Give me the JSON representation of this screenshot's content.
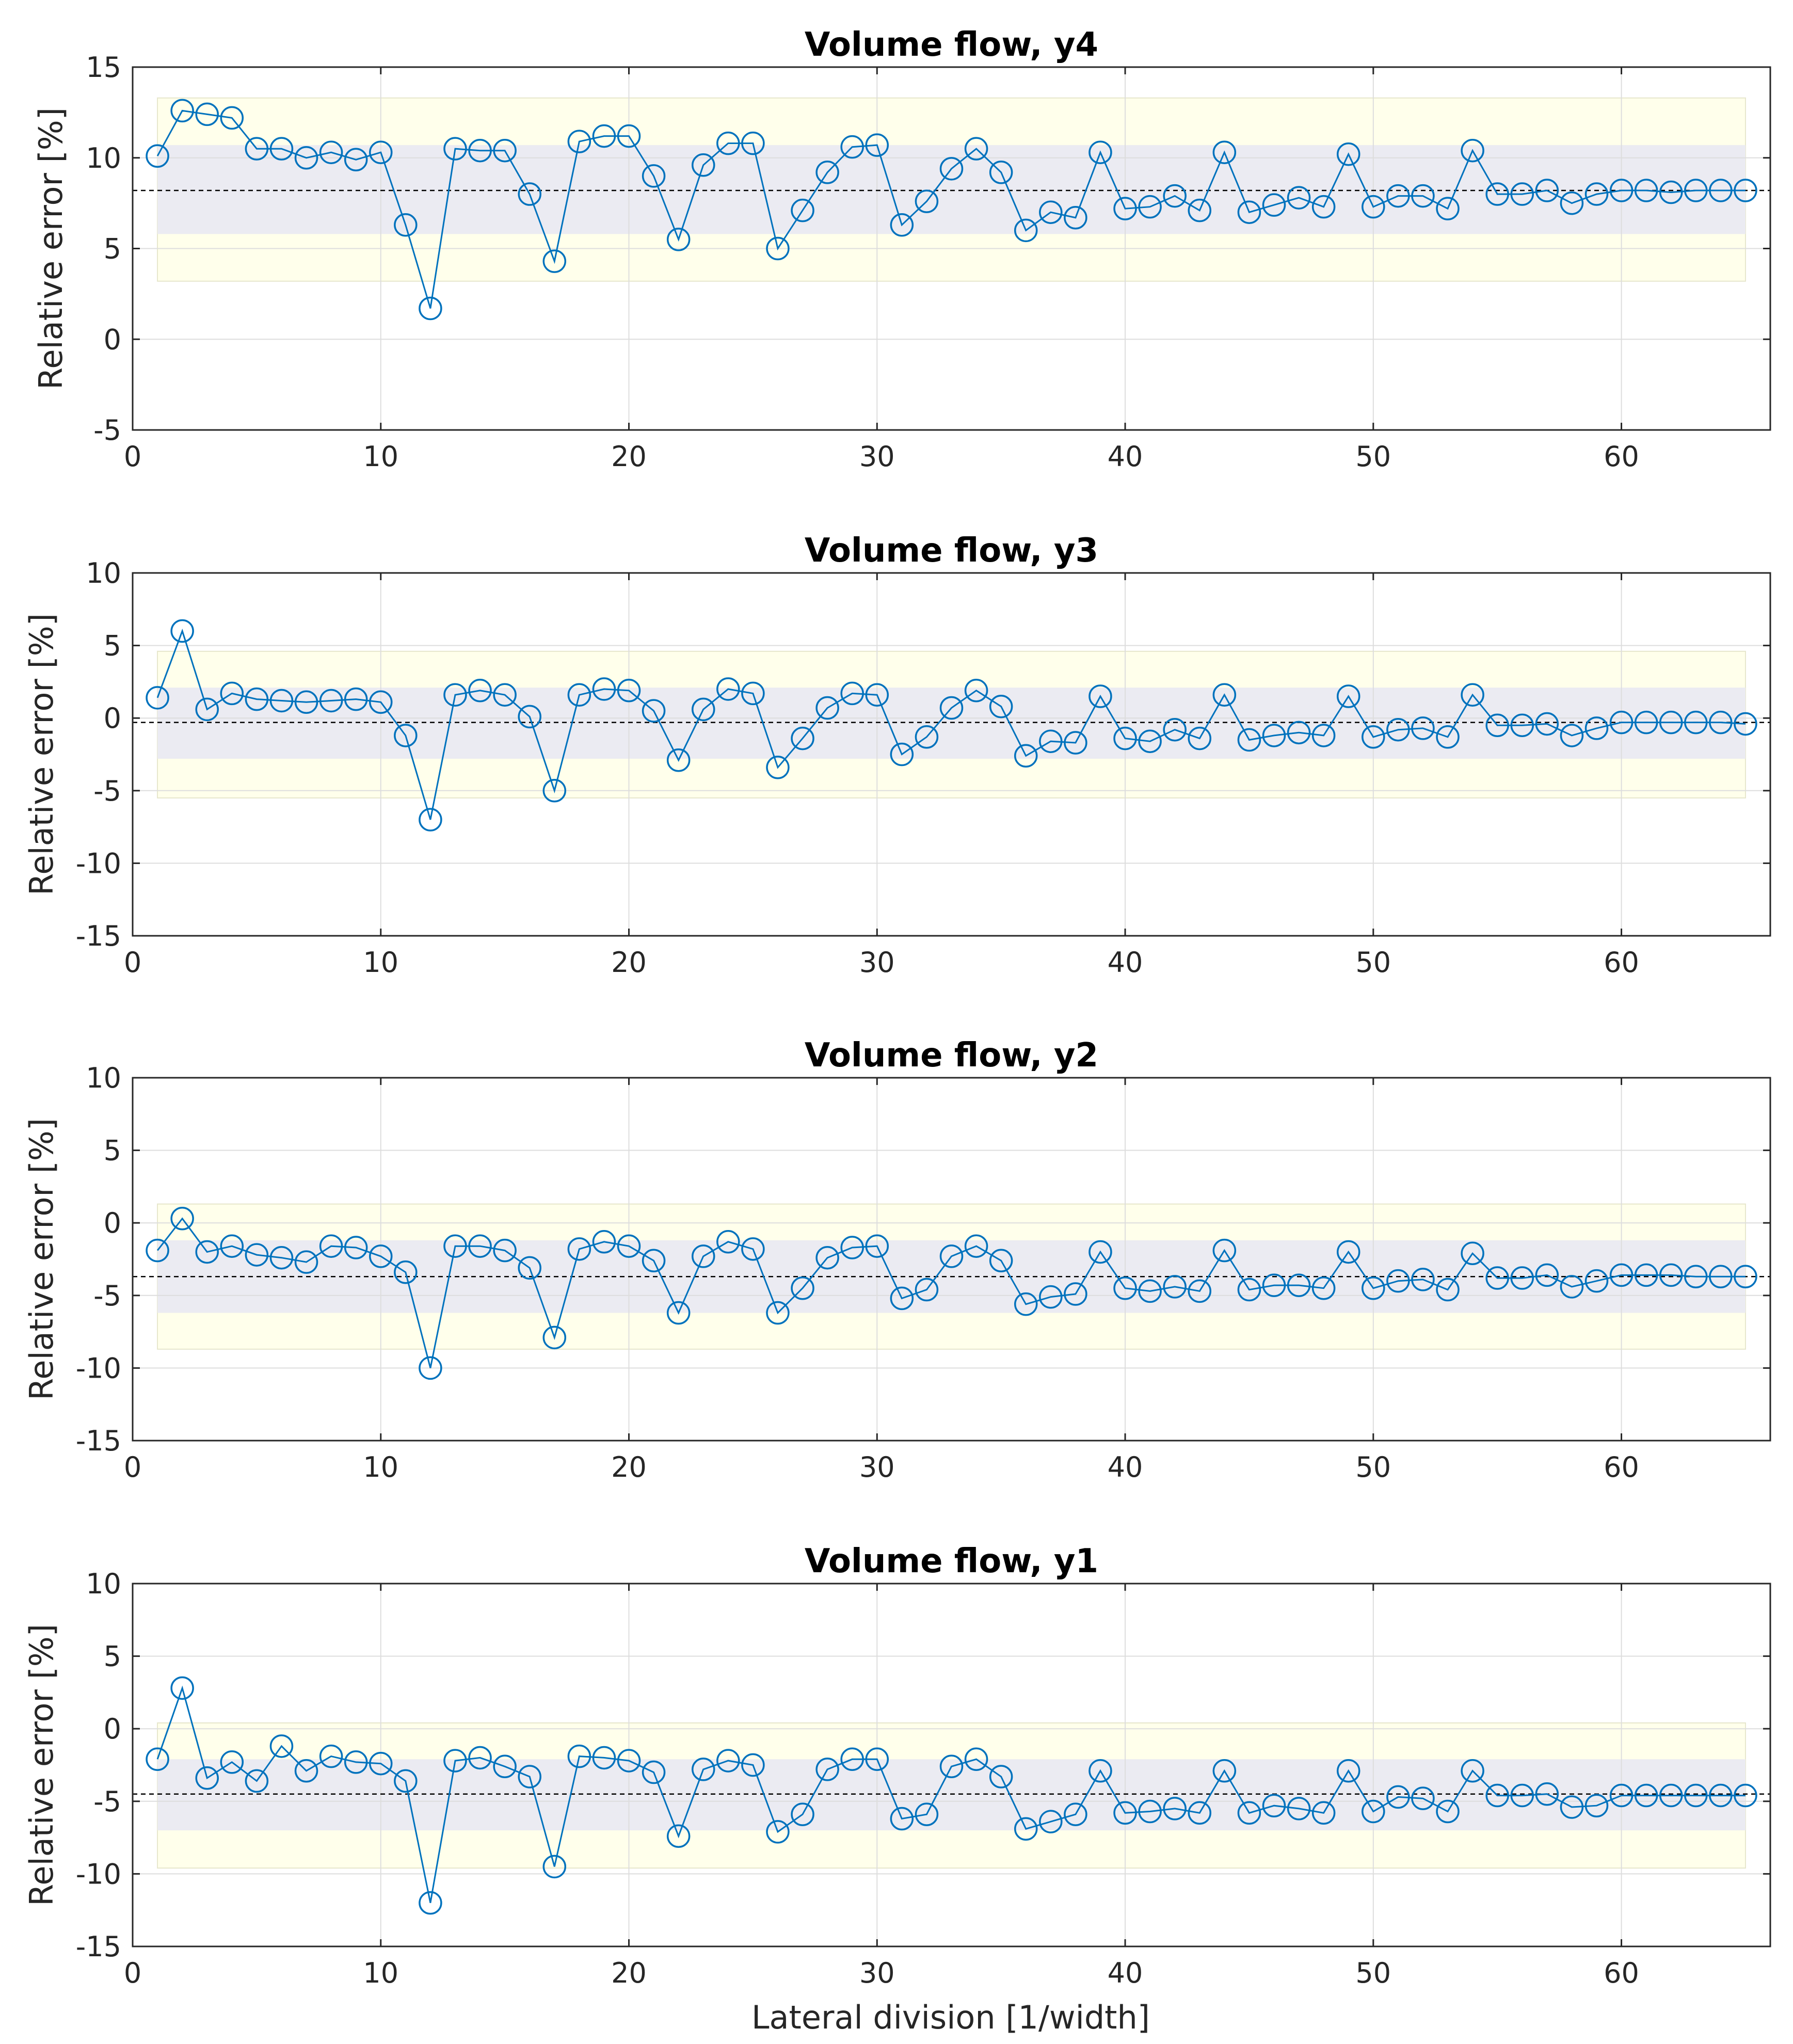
{
  "figure": {
    "xlabel": "Lateral division [1/width]",
    "colors": {
      "series": "#0072BD",
      "outer_band": "#FFFFEB",
      "inner_band": "#EBEBF2",
      "grid": "#DDDDDD",
      "axis": "#262626"
    }
  },
  "chart_data": [
    {
      "type": "line",
      "title": "Volume flow, y4",
      "xlabel": "",
      "ylabel": "Relative error [%]",
      "xlim": [
        0,
        66
      ],
      "ylim": [
        -5,
        15
      ],
      "xticks": [
        0,
        10,
        20,
        30,
        40,
        50,
        60
      ],
      "yticks": [
        -5,
        0,
        5,
        10,
        15
      ],
      "grid": true,
      "mean": 8.2,
      "inner_band": [
        5.8,
        10.7
      ],
      "outer_band": [
        3.2,
        13.3
      ],
      "x": [
        1,
        2,
        3,
        4,
        5,
        6,
        7,
        8,
        9,
        10,
        11,
        12,
        13,
        14,
        15,
        16,
        17,
        18,
        19,
        20,
        21,
        22,
        23,
        24,
        25,
        26,
        27,
        28,
        29,
        30,
        31,
        32,
        33,
        34,
        35,
        36,
        37,
        38,
        39,
        40,
        41,
        42,
        43,
        44,
        45,
        46,
        47,
        48,
        49,
        50,
        51,
        52,
        53,
        54,
        55,
        56,
        57,
        58,
        59,
        60,
        61,
        62,
        63,
        64,
        65
      ],
      "y": [
        10.1,
        12.6,
        12.4,
        12.2,
        10.5,
        10.5,
        10.0,
        10.3,
        9.9,
        10.3,
        6.3,
        1.7,
        10.5,
        10.4,
        10.4,
        8.0,
        4.3,
        10.9,
        11.2,
        11.2,
        9.0,
        5.5,
        9.6,
        10.8,
        10.8,
        5.0,
        7.1,
        9.2,
        10.6,
        10.7,
        6.3,
        7.6,
        9.4,
        10.5,
        9.2,
        6.0,
        7.0,
        6.7,
        10.3,
        7.2,
        7.3,
        7.9,
        7.1,
        10.3,
        7.0,
        7.4,
        7.8,
        7.3,
        10.2,
        7.3,
        7.9,
        7.9,
        7.2,
        10.4,
        8.0,
        8.0,
        8.2,
        7.5,
        8.0,
        8.2,
        8.2,
        8.1,
        8.2,
        8.2,
        8.2
      ]
    },
    {
      "type": "line",
      "title": "Volume flow, y3",
      "xlabel": "",
      "ylabel": "Relative error [%]",
      "xlim": [
        0,
        66
      ],
      "ylim": [
        -15,
        10
      ],
      "xticks": [
        0,
        10,
        20,
        30,
        40,
        50,
        60
      ],
      "yticks": [
        -15,
        -10,
        -5,
        0,
        5,
        10
      ],
      "grid": true,
      "mean": -0.3,
      "inner_band": [
        -2.8,
        2.1
      ],
      "outer_band": [
        -5.5,
        4.6
      ],
      "x": [
        1,
        2,
        3,
        4,
        5,
        6,
        7,
        8,
        9,
        10,
        11,
        12,
        13,
        14,
        15,
        16,
        17,
        18,
        19,
        20,
        21,
        22,
        23,
        24,
        25,
        26,
        27,
        28,
        29,
        30,
        31,
        32,
        33,
        34,
        35,
        36,
        37,
        38,
        39,
        40,
        41,
        42,
        43,
        44,
        45,
        46,
        47,
        48,
        49,
        50,
        51,
        52,
        53,
        54,
        55,
        56,
        57,
        58,
        59,
        60,
        61,
        62,
        63,
        64,
        65
      ],
      "y": [
        1.4,
        6.0,
        0.6,
        1.7,
        1.3,
        1.2,
        1.1,
        1.2,
        1.3,
        1.1,
        -1.2,
        -7.0,
        1.6,
        1.9,
        1.6,
        0.1,
        -5.0,
        1.6,
        2.0,
        1.9,
        0.5,
        -2.9,
        0.6,
        2.0,
        1.7,
        -3.4,
        -1.4,
        0.7,
        1.7,
        1.6,
        -2.5,
        -1.3,
        0.7,
        1.9,
        0.8,
        -2.6,
        -1.6,
        -1.7,
        1.5,
        -1.4,
        -1.6,
        -0.8,
        -1.4,
        1.6,
        -1.5,
        -1.2,
        -1.0,
        -1.2,
        1.5,
        -1.3,
        -0.8,
        -0.7,
        -1.3,
        1.6,
        -0.5,
        -0.5,
        -0.4,
        -1.2,
        -0.7,
        -0.3,
        -0.3,
        -0.3,
        -0.3,
        -0.3,
        -0.4
      ]
    },
    {
      "type": "line",
      "title": "Volume flow, y2",
      "xlabel": "",
      "ylabel": "Relative error [%]",
      "xlim": [
        0,
        66
      ],
      "ylim": [
        -15,
        10
      ],
      "xticks": [
        0,
        10,
        20,
        30,
        40,
        50,
        60
      ],
      "yticks": [
        -15,
        -10,
        -5,
        0,
        5,
        10
      ],
      "grid": true,
      "mean": -3.7,
      "inner_band": [
        -6.2,
        -1.2
      ],
      "outer_band": [
        -8.7,
        1.3
      ],
      "x": [
        1,
        2,
        3,
        4,
        5,
        6,
        7,
        8,
        9,
        10,
        11,
        12,
        13,
        14,
        15,
        16,
        17,
        18,
        19,
        20,
        21,
        22,
        23,
        24,
        25,
        26,
        27,
        28,
        29,
        30,
        31,
        32,
        33,
        34,
        35,
        36,
        37,
        38,
        39,
        40,
        41,
        42,
        43,
        44,
        45,
        46,
        47,
        48,
        49,
        50,
        51,
        52,
        53,
        54,
        55,
        56,
        57,
        58,
        59,
        60,
        61,
        62,
        63,
        64,
        65
      ],
      "y": [
        -1.9,
        0.3,
        -2.0,
        -1.6,
        -2.2,
        -2.4,
        -2.7,
        -1.6,
        -1.7,
        -2.3,
        -3.4,
        -10.0,
        -1.6,
        -1.6,
        -1.9,
        -3.1,
        -7.9,
        -1.8,
        -1.3,
        -1.6,
        -2.6,
        -6.2,
        -2.3,
        -1.3,
        -1.8,
        -6.2,
        -4.5,
        -2.4,
        -1.7,
        -1.6,
        -5.2,
        -4.6,
        -2.3,
        -1.6,
        -2.6,
        -5.6,
        -5.1,
        -4.9,
        -2.0,
        -4.5,
        -4.7,
        -4.4,
        -4.7,
        -1.9,
        -4.6,
        -4.3,
        -4.3,
        -4.5,
        -2.0,
        -4.5,
        -4.0,
        -3.9,
        -4.6,
        -2.1,
        -3.8,
        -3.8,
        -3.6,
        -4.4,
        -4.0,
        -3.6,
        -3.6,
        -3.6,
        -3.7,
        -3.7,
        -3.7
      ]
    },
    {
      "type": "line",
      "title": "Volume flow, y1",
      "xlabel": "Lateral division [1/width]",
      "ylabel": "Relative error [%]",
      "xlim": [
        0,
        66
      ],
      "ylim": [
        -15,
        10
      ],
      "xticks": [
        0,
        10,
        20,
        30,
        40,
        50,
        60
      ],
      "yticks": [
        -15,
        -10,
        -5,
        0,
        5,
        10
      ],
      "grid": true,
      "mean": -4.5,
      "inner_band": [
        -7.0,
        -2.1
      ],
      "outer_band": [
        -9.6,
        0.4
      ],
      "x": [
        1,
        2,
        3,
        4,
        5,
        6,
        7,
        8,
        9,
        10,
        11,
        12,
        13,
        14,
        15,
        16,
        17,
        18,
        19,
        20,
        21,
        22,
        23,
        24,
        25,
        26,
        27,
        28,
        29,
        30,
        31,
        32,
        33,
        34,
        35,
        36,
        37,
        38,
        39,
        40,
        41,
        42,
        43,
        44,
        45,
        46,
        47,
        48,
        49,
        50,
        51,
        52,
        53,
        54,
        55,
        56,
        57,
        58,
        59,
        60,
        61,
        62,
        63,
        64,
        65
      ],
      "y": [
        -2.1,
        2.8,
        -3.4,
        -2.3,
        -3.6,
        -1.2,
        -2.9,
        -1.9,
        -2.3,
        -2.4,
        -3.6,
        -12.0,
        -2.2,
        -2.0,
        -2.6,
        -3.3,
        -9.5,
        -1.9,
        -2.0,
        -2.2,
        -3.0,
        -7.4,
        -2.8,
        -2.2,
        -2.5,
        -7.1,
        -5.9,
        -2.8,
        -2.1,
        -2.1,
        -6.2,
        -5.9,
        -2.6,
        -2.1,
        -3.3,
        -6.9,
        -6.4,
        -5.9,
        -2.9,
        -5.8,
        -5.7,
        -5.5,
        -5.8,
        -2.9,
        -5.8,
        -5.3,
        -5.5,
        -5.8,
        -2.9,
        -5.7,
        -4.7,
        -4.8,
        -5.7,
        -2.9,
        -4.6,
        -4.6,
        -4.5,
        -5.4,
        -5.3,
        -4.6,
        -4.6,
        -4.6,
        -4.6,
        -4.6,
        -4.6
      ]
    }
  ]
}
